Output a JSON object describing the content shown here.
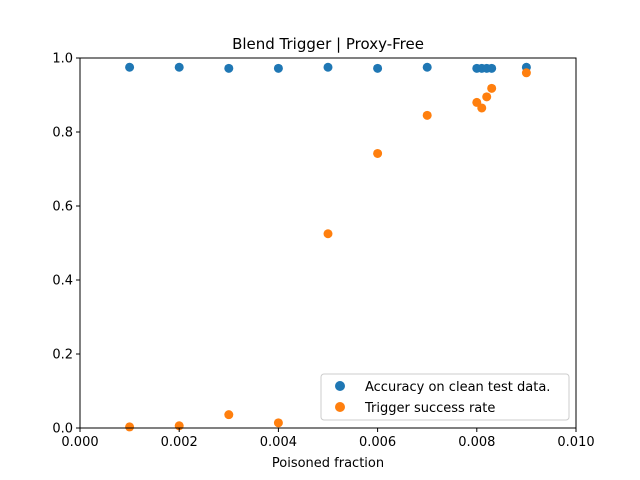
{
  "chart_data": {
    "type": "scatter",
    "title": "Blend Trigger | Proxy-Free",
    "xlabel": "Poisoned fraction",
    "ylabel": "",
    "xlim": [
      0.0,
      0.01
    ],
    "ylim": [
      0.0,
      1.0
    ],
    "xticks": [
      0.0,
      0.002,
      0.004,
      0.006,
      0.008,
      0.01
    ],
    "xtick_labels": [
      "0.000",
      "0.002",
      "0.004",
      "0.006",
      "0.008",
      "0.010"
    ],
    "yticks": [
      0.0,
      0.2,
      0.4,
      0.6,
      0.8,
      1.0
    ],
    "ytick_labels": [
      "0.0",
      "0.2",
      "0.4",
      "0.6",
      "0.8",
      "1.0"
    ],
    "grid": false,
    "legend_position": "lower-right",
    "series": [
      {
        "name": "Accuracy on clean test data.",
        "color": "#1f77b4",
        "x": [
          0.001,
          0.002,
          0.003,
          0.004,
          0.005,
          0.006,
          0.007,
          0.008,
          0.0081,
          0.0082,
          0.0083,
          0.009
        ],
        "y": [
          0.975,
          0.975,
          0.972,
          0.972,
          0.975,
          0.972,
          0.975,
          0.972,
          0.972,
          0.972,
          0.972,
          0.975
        ]
      },
      {
        "name": "Trigger success rate",
        "color": "#ff7f0e",
        "x": [
          0.001,
          0.002,
          0.003,
          0.004,
          0.005,
          0.006,
          0.007,
          0.008,
          0.0081,
          0.0082,
          0.0083,
          0.009
        ],
        "y": [
          0.003,
          0.006,
          0.036,
          0.014,
          0.525,
          0.742,
          0.845,
          0.88,
          0.865,
          0.895,
          0.918,
          0.96
        ]
      }
    ]
  }
}
